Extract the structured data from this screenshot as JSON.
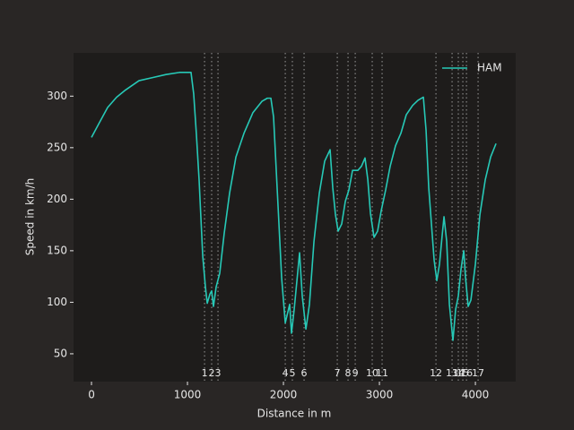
{
  "chart_data": {
    "type": "line",
    "xlabel": "Distance in m",
    "ylabel": "Speed in km/h",
    "x": [
      0,
      75,
      168,
      262,
      355,
      495,
      636,
      776,
      916,
      1037,
      1065,
      1093,
      1121,
      1159,
      1187,
      1206,
      1234,
      1252,
      1271,
      1299,
      1336,
      1383,
      1439,
      1505,
      1589,
      1682,
      1776,
      1832,
      1869,
      1897,
      1944,
      1981,
      2019,
      2047,
      2065,
      2084,
      2112,
      2168,
      2196,
      2234,
      2271,
      2318,
      2374,
      2430,
      2486,
      2514,
      2542,
      2570,
      2607,
      2645,
      2682,
      2720,
      2776,
      2813,
      2850,
      2879,
      2907,
      2944,
      2981,
      3019,
      3065,
      3112,
      3168,
      3224,
      3280,
      3346,
      3402,
      3458,
      3486,
      3514,
      3542,
      3570,
      3598,
      3626,
      3654,
      3673,
      3701,
      3729,
      3766,
      3794,
      3822,
      3850,
      3879,
      3897,
      3925,
      3953,
      4000,
      4047,
      4103,
      4159,
      4215
    ],
    "series": [
      {
        "name": "HAM",
        "color": "#27c9b7",
        "values": [
          260,
          273,
          289,
          299,
          306,
          315,
          318,
          321,
          323,
          323,
          302,
          263,
          219,
          145,
          115,
          99,
          108,
          111,
          96,
          115,
          128,
          167,
          206,
          241,
          264,
          284,
          295,
          298,
          298,
          280,
          193,
          124,
          80,
          91,
          98,
          70,
          93,
          148,
          106,
          74,
          98,
          159,
          206,
          237,
          248,
          211,
          185,
          169,
          176,
          198,
          209,
          228,
          228,
          232,
          240,
          219,
          186,
          163,
          169,
          189,
          209,
          232,
          252,
          264,
          282,
          291,
          296,
          299,
          267,
          211,
          176,
          141,
          121,
          137,
          165,
          183,
          159,
          98,
          63,
          93,
          106,
          132,
          150,
          124,
          96,
          102,
          137,
          185,
          219,
          241,
          254
        ]
      }
    ],
    "corners": {
      "labels": [
        "1",
        "2",
        "3",
        "4",
        "5",
        "6",
        "7",
        "8",
        "9",
        "10",
        "11",
        "12",
        "13",
        "14",
        "15",
        "16",
        "17"
      ],
      "distances": [
        1178,
        1252,
        1318,
        2019,
        2093,
        2215,
        2561,
        2673,
        2748,
        2925,
        3028,
        3589,
        3757,
        3822,
        3869,
        3907,
        4028
      ]
    },
    "xlim": [
      -187,
      4420
    ],
    "ylim": [
      23,
      342
    ],
    "xticks": [
      0,
      1000,
      2000,
      3000,
      4000
    ],
    "yticks": [
      50,
      100,
      150,
      200,
      250,
      300
    ],
    "legend": "upper right"
  }
}
